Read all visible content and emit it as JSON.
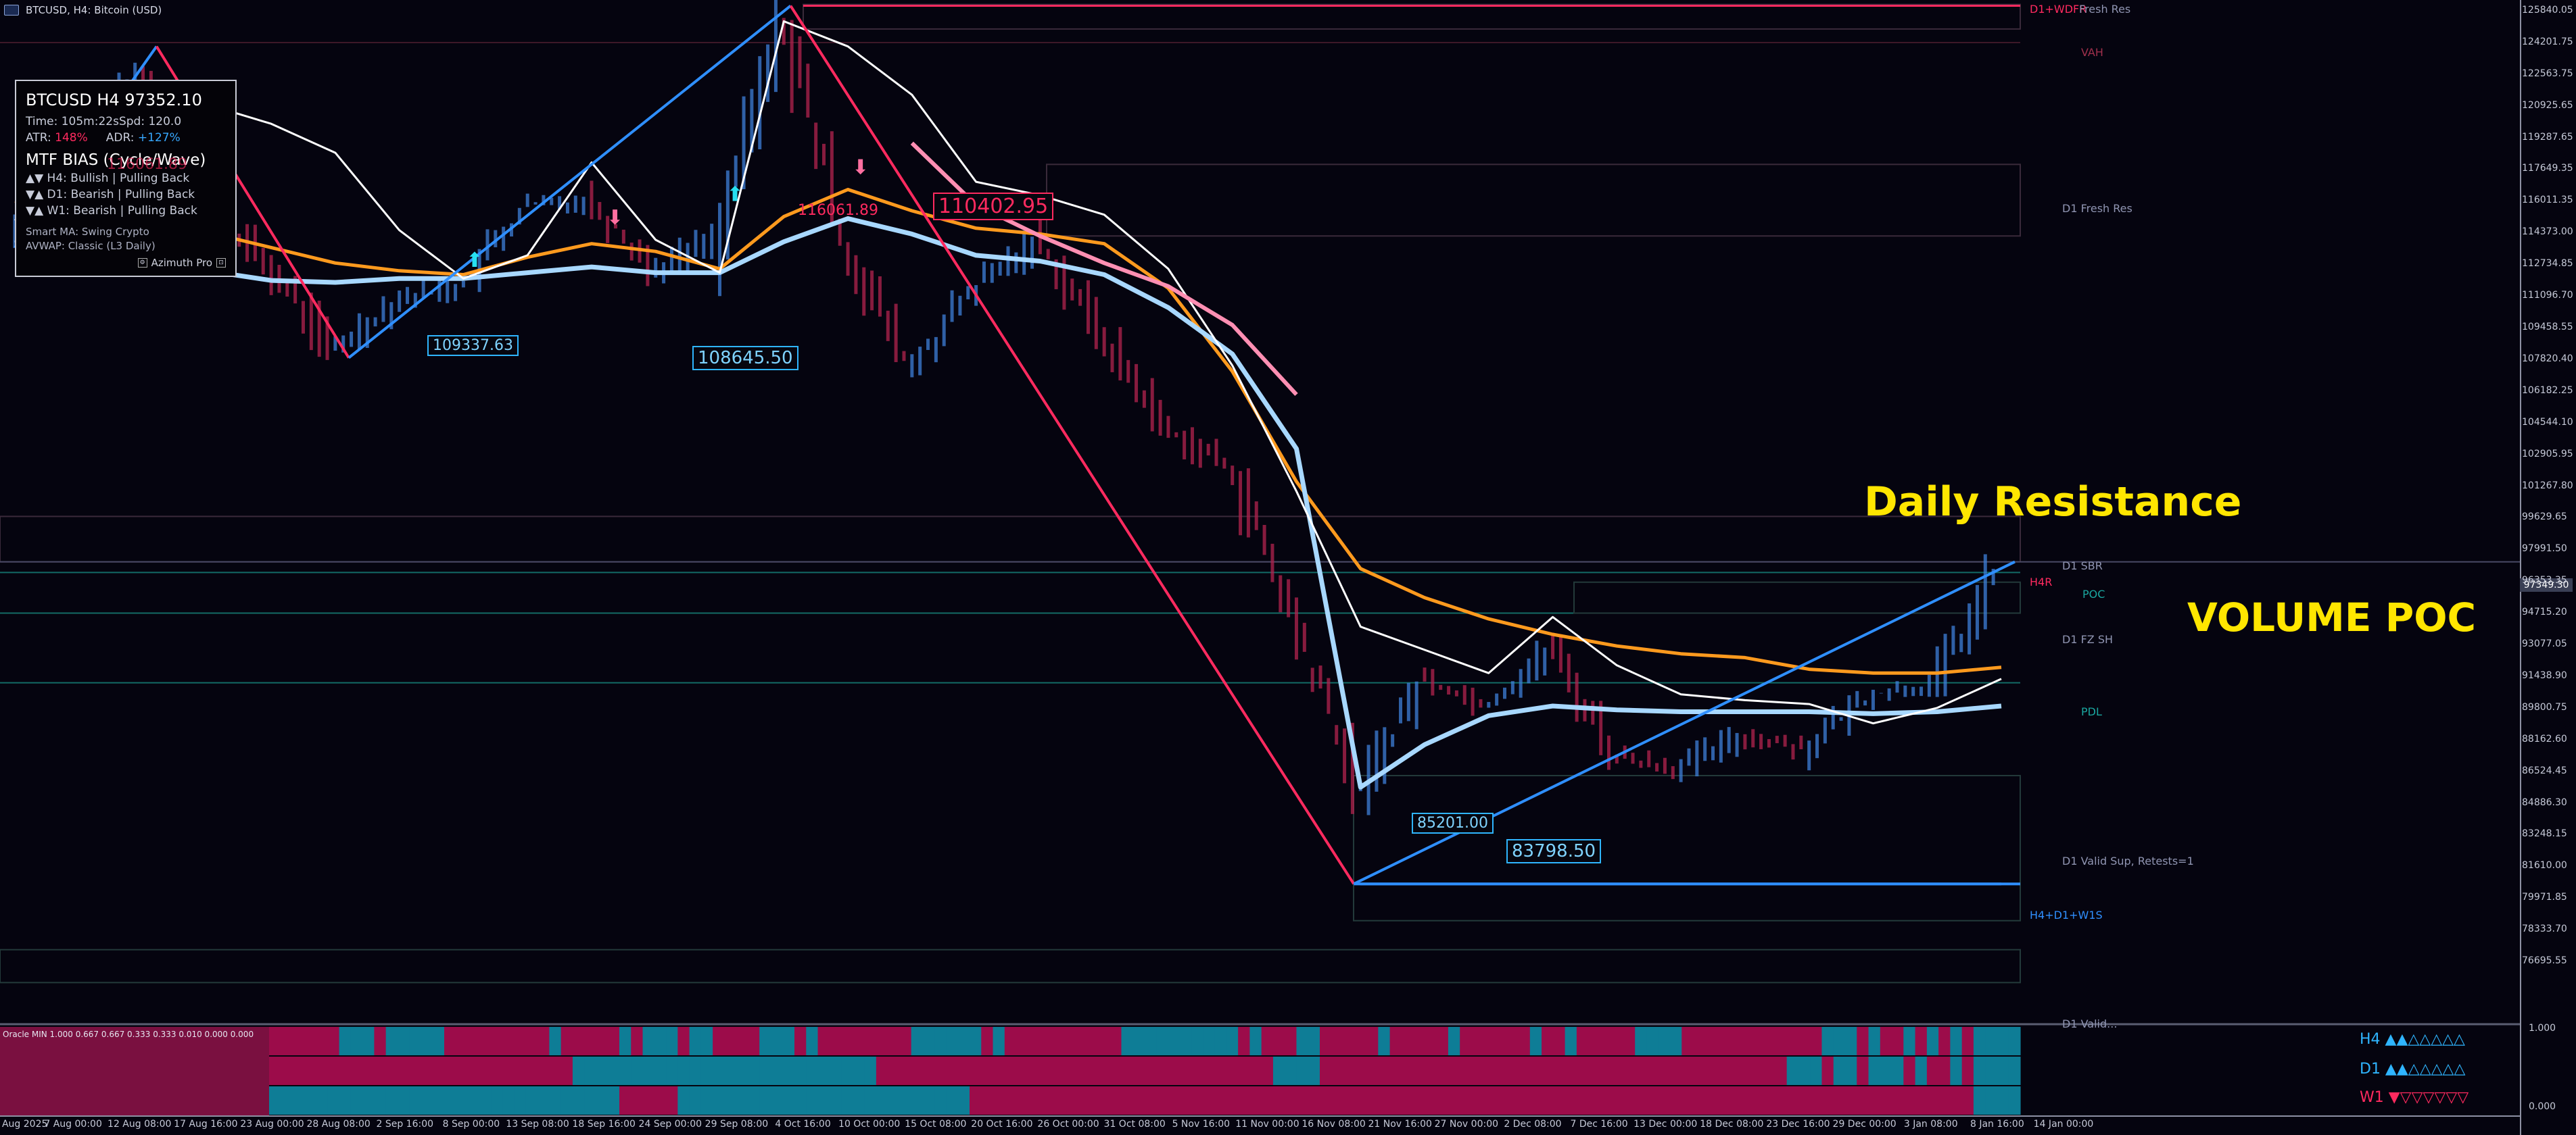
{
  "window": {
    "title": "BTCUSD, H4:  Bitcoin (USD)"
  },
  "info_panel": {
    "title": "BTCUSD H4 97352.10",
    "time_line": "Time: 105m:22sSpd: 120.0",
    "atr_label": "ATR:",
    "atr_value": "148%",
    "adr_label": "ADR:",
    "adr_value": "+127%",
    "mtf_title": "MTF BIAS (Cycle/Wave)",
    "h4_line": "▲▼ H4: Bullish | Pulling Back",
    "d1_line": "▼▲ D1: Bearish | Pulling Back",
    "w1_line": "▼▲ W1: Bearish | Pulling Back",
    "smart_ma": "Smart MA: Swing Crypto",
    "avwap": "AVWAP: Classic (L3 Daily)",
    "footer": "Azimuth Pro"
  },
  "y_axis": [
    {
      "price": 125840.05,
      "label": "125840.05"
    },
    {
      "price": 124201.75,
      "label": "124201.75"
    },
    {
      "price": 122563.75,
      "label": "122563.75"
    },
    {
      "price": 120925.65,
      "label": "120925.65"
    },
    {
      "price": 119287.65,
      "label": "119287.65"
    },
    {
      "price": 117649.35,
      "label": "117649.35"
    },
    {
      "price": 116011.35,
      "label": "116011.35"
    },
    {
      "price": 114373.0,
      "label": "114373.00"
    },
    {
      "price": 112734.85,
      "label": "112734.85"
    },
    {
      "price": 111096.7,
      "label": "111096.70"
    },
    {
      "price": 109458.55,
      "label": "109458.55"
    },
    {
      "price": 107820.4,
      "label": "107820.40"
    },
    {
      "price": 106182.25,
      "label": "106182.25"
    },
    {
      "price": 104544.1,
      "label": "104544.10"
    },
    {
      "price": 102905.95,
      "label": "102905.95"
    },
    {
      "price": 101267.8,
      "label": "101267.80"
    },
    {
      "price": 99629.65,
      "label": "99629.65"
    },
    {
      "price": 97991.5,
      "label": "97991.50"
    },
    {
      "price": 96353.35,
      "label": "96353.35"
    },
    {
      "price": 94715.2,
      "label": "94715.20"
    },
    {
      "price": 93077.05,
      "label": "93077.05"
    },
    {
      "price": 91438.9,
      "label": "91438.90"
    },
    {
      "price": 89800.75,
      "label": "89800.75"
    },
    {
      "price": 88162.6,
      "label": "88162.60"
    },
    {
      "price": 86524.45,
      "label": "86524.45"
    },
    {
      "price": 84886.3,
      "label": "84886.30"
    },
    {
      "price": 83248.15,
      "label": "83248.15"
    },
    {
      "price": 81610.0,
      "label": "81610.00"
    },
    {
      "price": 79971.85,
      "label": "79971.85"
    },
    {
      "price": 78333.7,
      "label": "78333.70"
    },
    {
      "price": 76695.55,
      "label": "76695.55"
    }
  ],
  "current_price": "97349.30",
  "x_axis": [
    "4 Aug 2025",
    "7 Aug 00:00",
    "12 Aug 08:00",
    "17 Aug 16:00",
    "23 Aug 00:00",
    "28 Aug 08:00",
    "2 Sep 16:00",
    "8 Sep 00:00",
    "13 Sep 08:00",
    "18 Sep 16:00",
    "24 Sep 00:00",
    "29 Sep 08:00",
    "4 Oct 16:00",
    "10 Oct 00:00",
    "15 Oct 08:00",
    "20 Oct 16:00",
    "26 Oct 00:00",
    "31 Oct 08:00",
    "5 Nov 16:00",
    "11 Nov 00:00",
    "16 Nov 08:00",
    "21 Nov 16:00",
    "27 Nov 00:00",
    "2 Dec 08:00",
    "7 Dec 16:00",
    "13 Dec 00:00",
    "18 Dec 08:00",
    "23 Dec 16:00",
    "29 Dec 00:00",
    "3 Jan 08:00",
    "8 Jan 16:00",
    "14 Jan 00:00"
  ],
  "zones": {
    "d1_wdfr": "D1+WDFR",
    "fresh_res": "Fresh Res",
    "vah": "VAH",
    "d1_fresh_res": "D1 Fresh Res",
    "d1_sbr": "D1 SBR",
    "h4r": "H4R",
    "poc": "POC",
    "d1_fz_sh": "D1 FZ SH",
    "pdl": "PDL",
    "d1_valid_sup": "D1 Valid Sup, Retests=1",
    "h4_d1_w1s": "H4+D1+W1S",
    "bottom_zone": "D1 Valid..."
  },
  "annotations": {
    "daily_resistance": "Daily Resistance",
    "volume_poc": "VOLUME POC"
  },
  "callouts": {
    "c1": "109337.63",
    "c2": "108645.50",
    "c3": "116061.89",
    "c4": "110402.95",
    "c5": "85201.00",
    "c6": "83798.50",
    "c7": "116061.89"
  },
  "oscillator": {
    "name": "Oracle MIN 1.000 0.667 0.667 0.333 0.333 0.010 0.000 0.000",
    "scale_top": "1.000",
    "scale_bottom": "0.000",
    "h4_label": "H4 ▲▲△△△△△",
    "d1_label": "D1 ▲▲△△△△△",
    "w1_label": "W1 ▼▽▽▽▽▽▽"
  },
  "colors": {
    "background": "#05040f",
    "bull": "#2f8fff",
    "bear": "#ff2a5f",
    "avwap_orange": "#ff9a1e",
    "ma_light_blue": "#a8d8ff",
    "white_line": "#ffffff",
    "teal": "#1aa7a0",
    "annotation_yellow": "#ffe600",
    "osc_teal": "#0e7d96",
    "osc_magenta": "#9c0c4a"
  },
  "chart_data": {
    "type": "line",
    "title": "BTCUSD, H4: Bitcoin (USD)",
    "xlabel": "",
    "ylabel": "",
    "ylim": [
      75000,
      127000
    ],
    "x": [
      "4 Aug 2025",
      "7 Aug 00:00",
      "12 Aug 08:00",
      "17 Aug 16:00",
      "23 Aug 00:00",
      "28 Aug 08:00",
      "2 Sep 16:00",
      "8 Sep 00:00",
      "13 Sep 08:00",
      "18 Sep 16:00",
      "24 Sep 00:00",
      "29 Sep 08:00",
      "4 Oct 16:00",
      "10 Oct 00:00",
      "15 Oct 08:00",
      "20 Oct 16:00",
      "26 Oct 00:00",
      "31 Oct 08:00",
      "5 Nov 16:00",
      "11 Nov 00:00",
      "16 Nov 08:00",
      "21 Nov 16:00",
      "27 Nov 00:00",
      "2 Dec 08:00",
      "7 Dec 16:00",
      "13 Dec 00:00",
      "18 Dec 08:00",
      "23 Dec 16:00",
      "29 Dec 00:00",
      "3 Jan 08:00",
      "8 Jan 16:00",
      "14 Jan 00:00"
    ],
    "series": [
      {
        "values": [
          114500,
          118800,
          122600,
          116000,
          112500,
          108300,
          111000,
          111600,
          115800,
          116000,
          112500,
          114200,
          125300,
          113500,
          107300,
          111500,
          114000,
          109000,
          104200,
          102200,
          94000,
          85500,
          91300,
          90000,
          92800,
          87300,
          86700,
          88300,
          87800,
          90500,
          91000,
          97300
        ]
      },
      {
        "values": [
          116000,
          115500,
          115000,
          114400,
          113600,
          112800,
          112400,
          112200,
          113100,
          113800,
          113400,
          112500,
          115200,
          116600,
          115500,
          114600,
          114300,
          113800,
          111500,
          107200,
          101500,
          97000,
          95500,
          94400,
          93600,
          93000,
          92600,
          92400,
          91800,
          91600,
          91600,
          91900
        ]
      },
      {
        "values": [
          114000,
          113400,
          113000,
          112400,
          111900,
          111800,
          112000,
          112000,
          112300,
          112600,
          112300,
          112300,
          113900,
          115100,
          114300,
          113200,
          112900,
          112200,
          110500,
          108100,
          103200,
          85700,
          87900,
          89400,
          89900,
          89700,
          89600,
          89600,
          89600,
          89500,
          89600,
          89900
        ]
      },
      {
        "values": [
          115000,
          117700,
          120000,
          121000,
          120000,
          118500,
          114500,
          112000,
          113200,
          118000,
          114000,
          112300,
          125300,
          124000,
          121500,
          117000,
          116300,
          115300,
          112500,
          107500,
          101000,
          94000,
          92800,
          91600,
          94500,
          92000,
          90500,
          90200,
          90000,
          89000,
          89800,
          91300
        ]
      },
      {
        "values": [
          null,
          null,
          null,
          null,
          null,
          null,
          null,
          null,
          null,
          null,
          null,
          null,
          null,
          null,
          119000,
          115800,
          114200,
          112800,
          111600,
          109600,
          106000,
          null,
          null,
          null,
          null,
          null,
          null,
          null,
          null,
          null,
          null,
          null
        ]
      }
    ],
    "lines": {
      "d1_sbr": 99700,
      "h4r": 97352,
      "poc": 96800,
      "d1_fz_sh": 94700,
      "pdl": 91100,
      "h4_d1_w1s": 80700,
      "vah": 124200,
      "d1_wdfr_top": 126100
    },
    "grid": false,
    "legend": "none"
  }
}
